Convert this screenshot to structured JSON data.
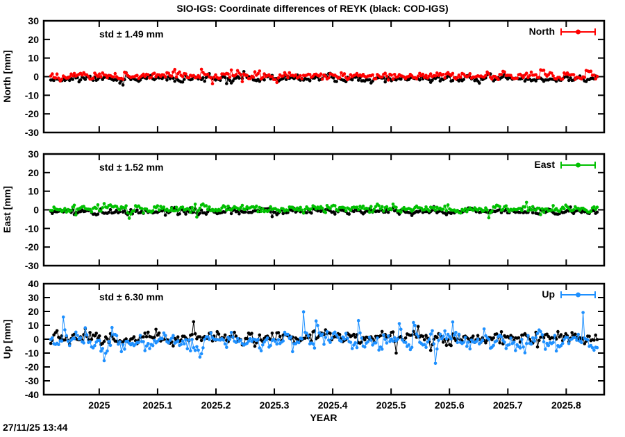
{
  "title": "SIO-IGS: Coordinate differences of REYK (black: COD-IGS)",
  "timestamp": "27/11/25 13:44",
  "x_axis": {
    "label": "YEAR",
    "lim": [
      2024.905,
      2025.865
    ],
    "values": [
      2025,
      2025.1,
      2025.2,
      2025.3,
      2025.4,
      2025.5,
      2025.6,
      2025.7,
      2025.8
    ],
    "ticks": [
      "2025",
      "2025.1",
      "2025.2",
      "2025.3",
      "2025.4",
      "2025.5",
      "2025.6",
      "2025.7",
      "2025.8"
    ]
  },
  "chart_data": [
    {
      "type": "scatter",
      "panel": "north",
      "ylabel": "North [mm]",
      "ylim": [
        -30,
        30
      ],
      "yticks": [
        30,
        20,
        10,
        0,
        -10,
        -20,
        -30
      ],
      "std_label": "std ± 1.49 mm",
      "legend_label": "North",
      "accent_color": "#ff0000",
      "n_points": 349,
      "grid": false,
      "legend_position": "top-right-inside",
      "series": [
        {
          "name": "COD-IGS",
          "color": "#000000",
          "mean": -1.1,
          "std": 1.2,
          "seed": 11,
          "tail_p": 0.08,
          "tail_mul": 1.5,
          "core_mul": 0.8,
          "smooth": 0.3
        },
        {
          "name": "SIO-IGS",
          "color": "#ff0000",
          "mean": 0.6,
          "std": 1.49,
          "seed": 21,
          "tail_p": 0.08,
          "tail_mul": 1.5,
          "core_mul": 0.8,
          "smooth": 0.3
        }
      ]
    },
    {
      "type": "scatter",
      "panel": "east",
      "ylabel": "East [mm]",
      "ylim": [
        -30,
        30
      ],
      "yticks": [
        30,
        20,
        10,
        0,
        -10,
        -20,
        -30
      ],
      "std_label": "std ± 1.52 mm",
      "legend_label": "East",
      "accent_color": "#00c000",
      "n_points": 349,
      "grid": false,
      "legend_position": "top-right-inside",
      "series": [
        {
          "name": "COD-IGS",
          "color": "#000000",
          "mean": -0.8,
          "std": 1.2,
          "seed": 31,
          "tail_p": 0.08,
          "tail_mul": 1.5,
          "core_mul": 0.8,
          "smooth": 0.3
        },
        {
          "name": "SIO-IGS",
          "color": "#00c000",
          "mean": 0.5,
          "std": 1.52,
          "seed": 41,
          "tail_p": 0.08,
          "tail_mul": 1.5,
          "core_mul": 0.8,
          "smooth": 0.3
        }
      ]
    },
    {
      "type": "scatter",
      "panel": "up",
      "ylabel": "Up [mm]",
      "ylim": [
        -40,
        40
      ],
      "yticks": [
        40,
        30,
        20,
        10,
        0,
        -10,
        -20,
        -30,
        -40
      ],
      "std_label": "std ± 6.30 mm",
      "legend_label": "Up",
      "accent_color": "#1e90ff",
      "n_points": 349,
      "grid": false,
      "legend_position": "top-right-inside",
      "series": [
        {
          "name": "COD-IGS",
          "color": "#000000",
          "mean": 1.0,
          "std": 3.2,
          "seed": 51,
          "tail_p": 0.08,
          "tail_mul": 1.5,
          "core_mul": 0.75,
          "smooth": 0.3
        },
        {
          "name": "SIO-IGS",
          "color": "#1e90ff",
          "mean": -1.8,
          "std": 6.3,
          "seed": 61,
          "tail_p": 0.12,
          "tail_mul": 1.9,
          "core_mul": 0.55,
          "smooth": 0.45
        }
      ]
    }
  ]
}
